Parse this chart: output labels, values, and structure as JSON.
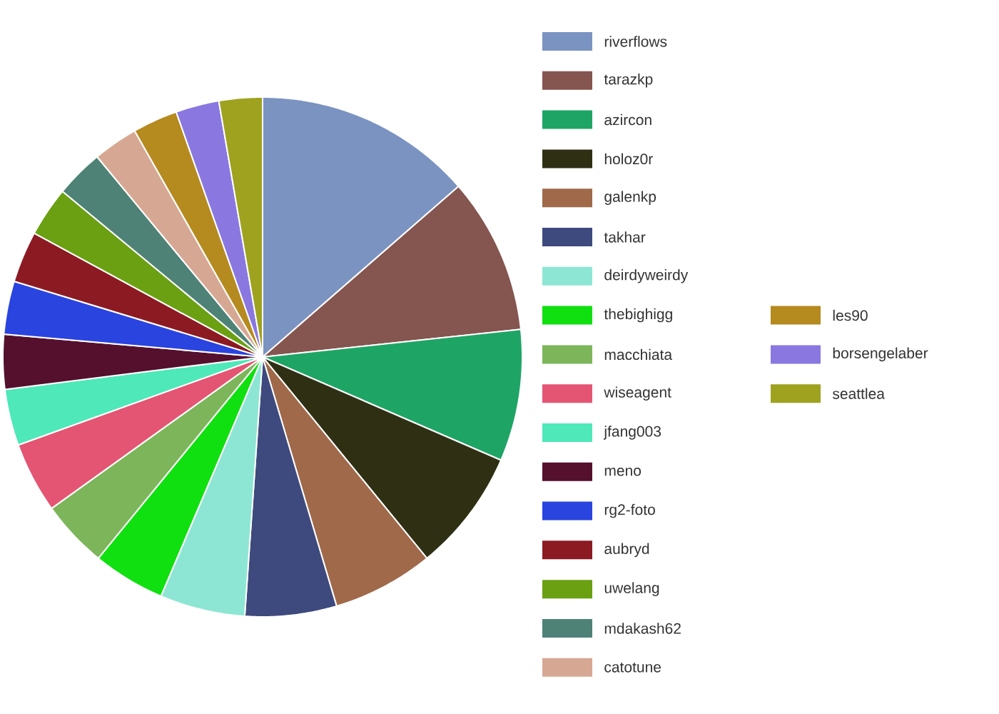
{
  "chart_data": {
    "type": "pie",
    "legend": "right",
    "categories": [
      "riverflows",
      "tarazkp",
      "azircon",
      "holoz0r",
      "galenkp",
      "takhar",
      "deirdyweirdy",
      "thebighigg",
      "macchiata",
      "wiseagent",
      "jfang003",
      "meno",
      "rg2-foto",
      "aubryd",
      "uwelang",
      "mdakash62",
      "catotune",
      "les90",
      "borsengelaber",
      "seattlea"
    ],
    "values": [
      13.6,
      9.7,
      8.2,
      7.6,
      6.3,
      5.7,
      5.3,
      4.5,
      4.2,
      4.4,
      3.5,
      3.4,
      3.3,
      3.2,
      3.1,
      3.0,
      2.8,
      2.8,
      2.7,
      2.7
    ],
    "colors": [
      "#7a93c1",
      "#85554f",
      "#1ea565",
      "#2f2f14",
      "#a0694a",
      "#3e4a7d",
      "#8de6d4",
      "#10e010",
      "#7cb55a",
      "#e45574",
      "#4fe8b8",
      "#55102e",
      "#2a44e0",
      "#8c1a22",
      "#6aa012",
      "#4e8276",
      "#d6a893",
      "#b58a1f",
      "#8a78e0",
      "#9fa21f"
    ]
  }
}
